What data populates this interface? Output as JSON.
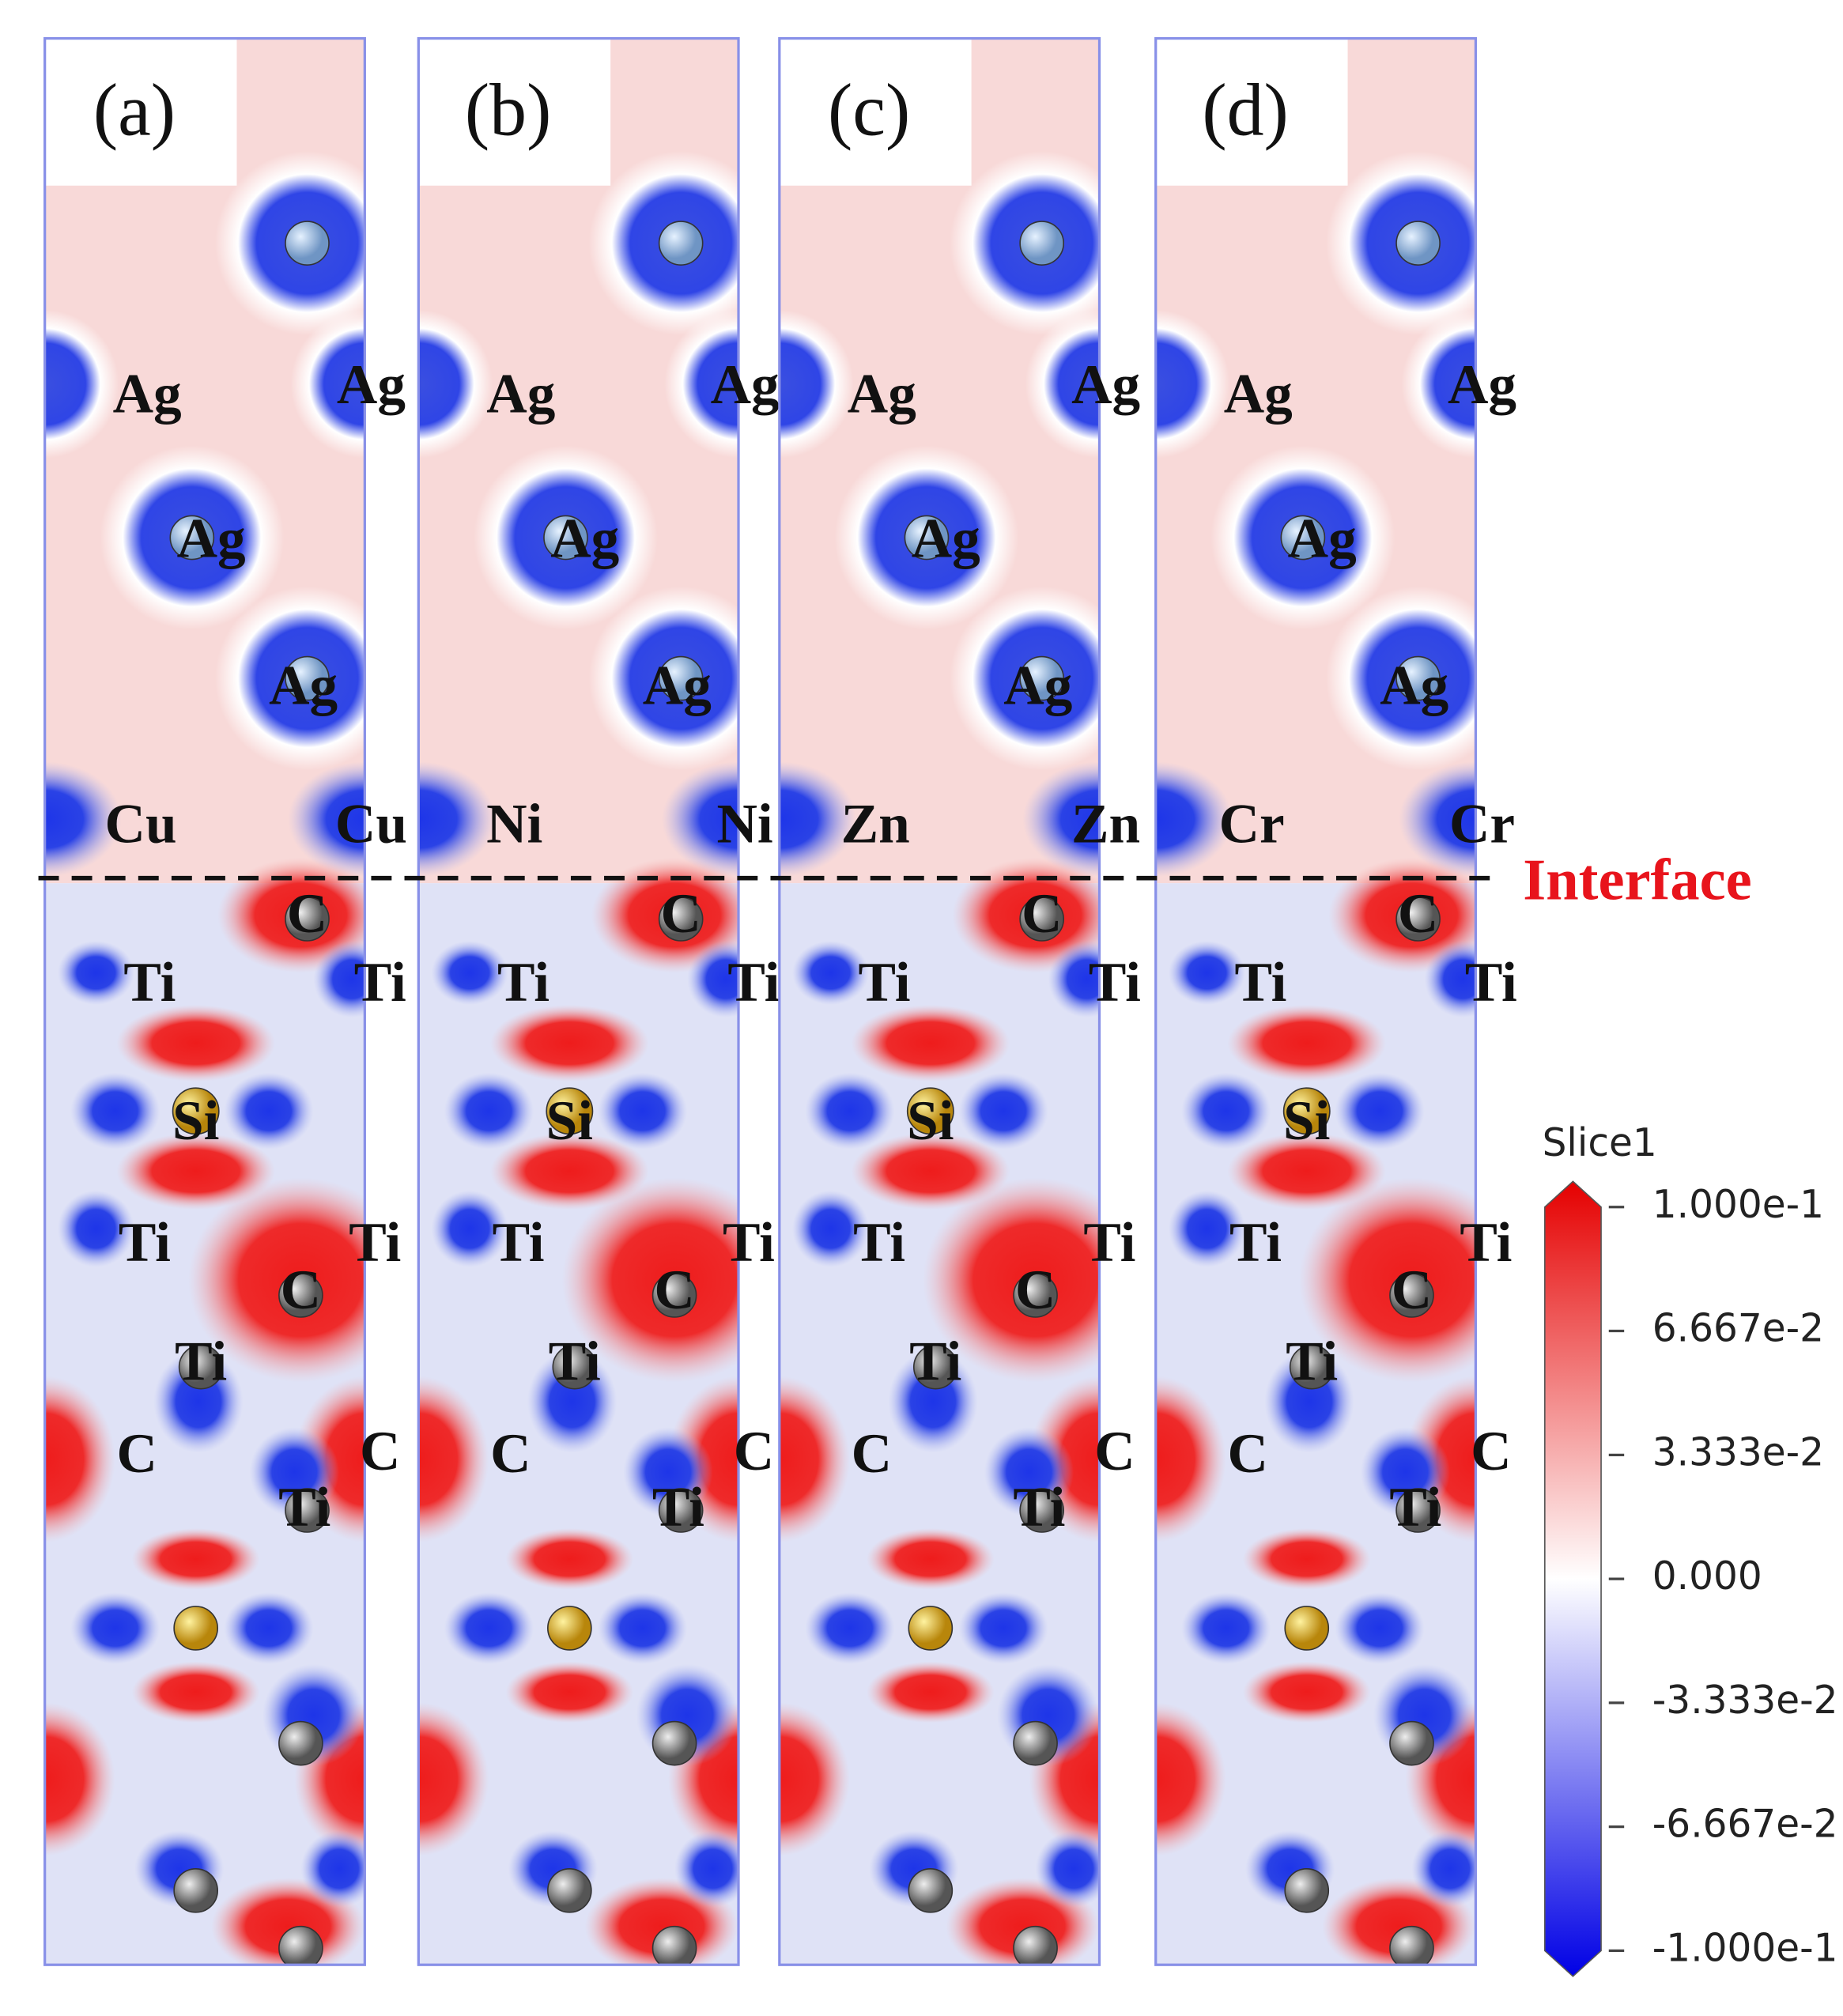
{
  "panels": [
    {
      "label": "(a)",
      "atoms": [
        "Ag",
        "Ag",
        "Ag",
        "Ag",
        "Cu",
        "Cu",
        "C",
        "Ti",
        "Ti",
        "Si",
        "Ti",
        "Ti",
        "C",
        "Ti",
        "C",
        "C",
        "Ti"
      ]
    },
    {
      "label": "(b)",
      "atoms": [
        "Ag",
        "Ag",
        "Ag",
        "Ag",
        "Ni",
        "Ni",
        "C",
        "Ti",
        "Ti",
        "Si",
        "Ti",
        "Ti",
        "C",
        "Ti",
        "C",
        "C",
        "Ti"
      ]
    },
    {
      "label": "(c)",
      "atoms": [
        "Ag",
        "Ag",
        "Ag",
        "Ag",
        "Zn",
        "Zn",
        "C",
        "Ti",
        "Ti",
        "Si",
        "Ti",
        "Ti",
        "C",
        "Ti",
        "C",
        "C",
        "Ti"
      ]
    },
    {
      "label": "(d)",
      "atoms": [
        "Ag",
        "Ag",
        "Ag",
        "Ag",
        "Cr",
        "Cr",
        "C",
        "Ti",
        "Ti",
        "Si",
        "Ti",
        "Ti",
        "C",
        "Ti",
        "C",
        "C",
        "Ti"
      ]
    }
  ],
  "interface": "Interface",
  "colorbar": {
    "title": "Slice1",
    "lim": [
      -0.1,
      0.1
    ],
    "ticks": [
      {
        "value": 0.1,
        "label": "1.000e-1"
      },
      {
        "value": 0.06667,
        "label": "6.667e-2"
      },
      {
        "value": 0.03333,
        "label": "3.333e-2"
      },
      {
        "value": 0,
        "label": "0.000"
      },
      {
        "value": -0.03333,
        "label": "-3.333e-2"
      },
      {
        "value": -0.06667,
        "label": "-6.667e-2"
      },
      {
        "value": -0.1,
        "label": "-1.000e-1"
      }
    ]
  }
}
